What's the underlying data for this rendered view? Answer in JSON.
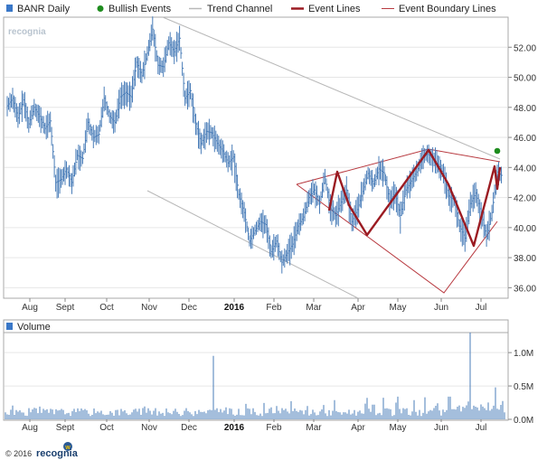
{
  "legend": {
    "ticker": "BANR Daily",
    "bullish": "Bullish Events",
    "trend": "Trend Channel",
    "event_lines": "Event Lines",
    "boundary": "Event Boundary Lines"
  },
  "watermark": "recognia",
  "volume_label": "Volume",
  "footer": {
    "copyright": "© 2016",
    "brand": "recognia"
  },
  "colors": {
    "price": "#4a7db8",
    "event": "#9b1b22",
    "bullish": "#1e8c1e",
    "trend": "#b8b8b8",
    "grid": "#e6e6e6"
  },
  "chart_data": [
    {
      "type": "line",
      "title": "BANR Daily",
      "x_ticks": [
        {
          "label": "Aug",
          "bold": false
        },
        {
          "label": "Sept",
          "bold": false
        },
        {
          "label": "Oct",
          "bold": false
        },
        {
          "label": "Nov",
          "bold": false
        },
        {
          "label": "Dec",
          "bold": false
        },
        {
          "label": "2016",
          "bold": true
        },
        {
          "label": "Feb",
          "bold": false
        },
        {
          "label": "Mar",
          "bold": false
        },
        {
          "label": "Apr",
          "bold": false
        },
        {
          "label": "May",
          "bold": false
        },
        {
          "label": "Jun",
          "bold": false
        },
        {
          "label": "Jul",
          "bold": false
        }
      ],
      "y_ticks": [
        "36.00",
        "38.00",
        "40.00",
        "42.00",
        "44.00",
        "46.00",
        "48.00",
        "50.00",
        "52.00"
      ],
      "ylim": [
        35.3,
        54.0
      ],
      "series": [
        {
          "values": [
            48.1,
            48.6,
            47.3,
            48.5,
            46.9,
            48.0,
            47.4,
            46.6,
            47.1,
            43.0,
            43.2,
            43.9,
            43.0,
            44.8,
            44.6,
            47.0,
            46.0,
            46.2,
            48.6,
            47.4,
            47.0,
            48.7,
            49.0,
            48.7,
            51.0,
            50.1,
            51.6,
            53.2,
            50.8,
            50.7,
            52.3,
            51.7,
            52.6,
            48.6,
            49.1,
            46.9,
            45.6,
            46.4,
            46.3,
            45.6,
            45.1,
            44.3,
            44.7,
            42.2,
            41.0,
            39.1,
            39.8,
            40.4,
            40.2,
            38.4,
            39.1,
            37.7,
            38.3,
            38.9,
            40.1,
            40.7,
            42.0,
            42.5,
            41.6,
            43.4,
            41.3,
            40.8,
            41.7,
            42.5,
            40.4,
            41.2,
            42.4,
            43.6,
            42.9,
            43.9,
            43.6,
            41.8,
            42.3,
            40.8,
            42.5,
            43.1,
            43.7,
            44.6,
            44.9,
            44.6,
            44.2,
            43.6,
            42.1,
            41.8,
            40.1,
            39.3,
            41.6,
            42.3,
            40.9,
            39.4,
            41.0,
            43.7,
            43.4
          ]
        }
      ],
      "events": {
        "event_line_points": [
          [
            0,
            0
          ],
          [
            0,
            0
          ]
        ]
      }
    },
    {
      "type": "bar",
      "title": "Volume",
      "x_ticks": [
        "Aug",
        "Sept",
        "Oct",
        "Nov",
        "Dec",
        "2016",
        "Feb",
        "Mar",
        "Apr",
        "May",
        "Jun",
        "Jul"
      ],
      "y_ticks": [
        "0.0M",
        "0.5M",
        "1.0M"
      ],
      "ylim": [
        0,
        1.3
      ]
    }
  ]
}
